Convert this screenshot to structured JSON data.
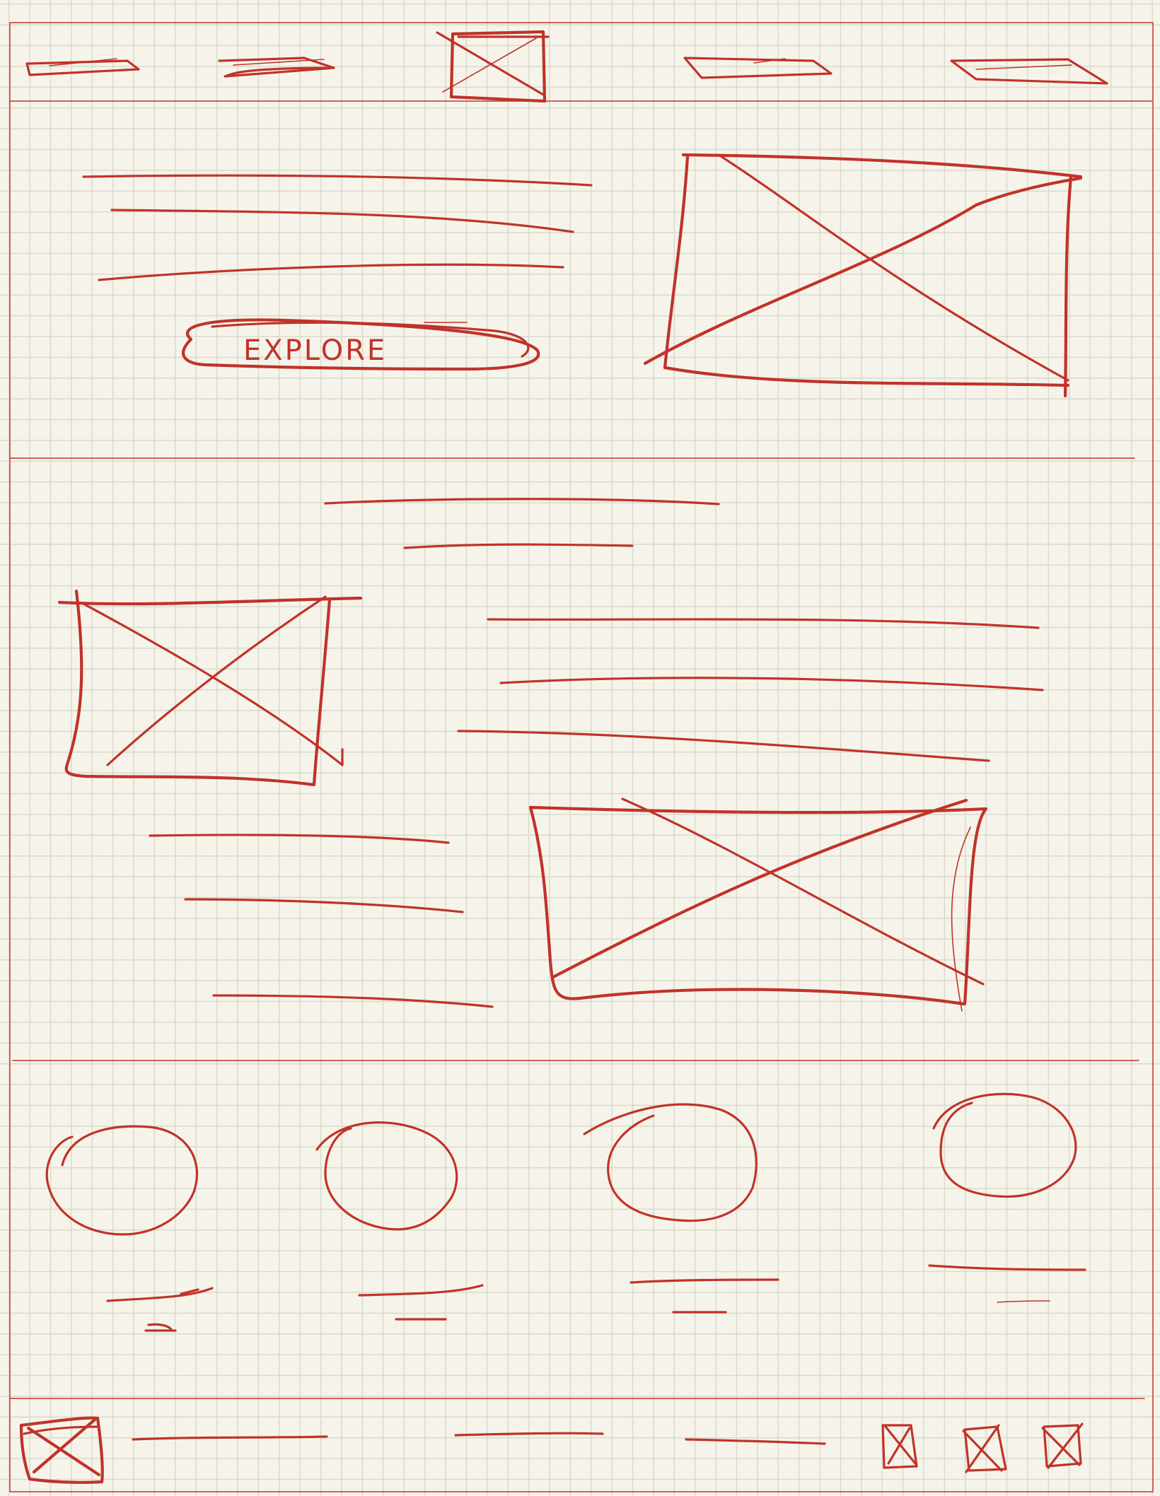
{
  "colors": {
    "ink": "#c0332a",
    "paper": "#f6f4ea",
    "grid": "#d9d9cc"
  },
  "hero": {
    "button_label": "EXPLORE"
  },
  "icons": {
    "logo": "image-placeholder-icon",
    "footer_logo": "image-placeholder-icon",
    "social": [
      "image-placeholder-icon",
      "image-placeholder-icon",
      "image-placeholder-icon"
    ]
  }
}
